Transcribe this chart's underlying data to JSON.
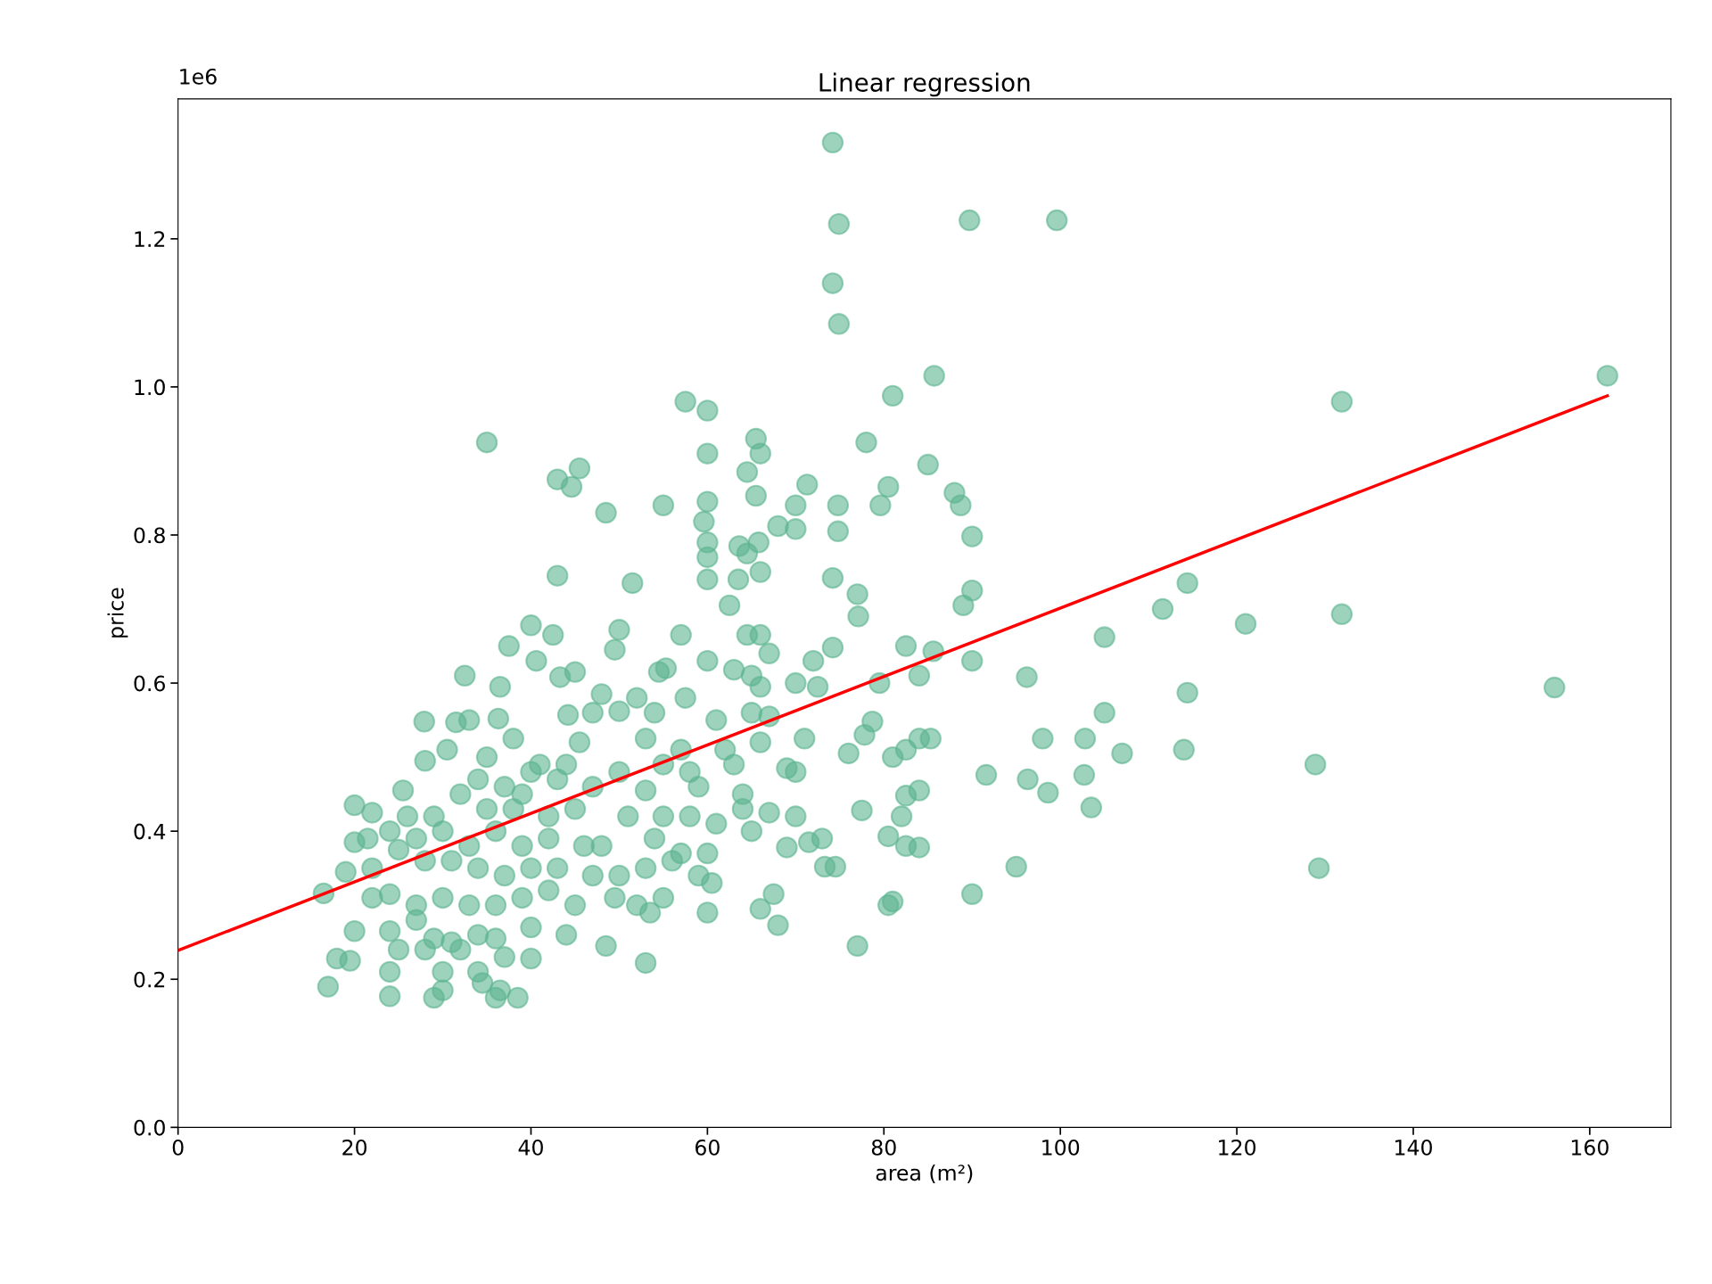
{
  "chart_data": {
    "type": "scatter",
    "title": "Linear regression",
    "xlabel": "area (m²)",
    "ylabel": "price",
    "annotations": [
      "1e6"
    ],
    "xlim": [
      0,
      169.2
    ],
    "ylim": [
      0,
      1.389
    ],
    "xticks": [
      0,
      20,
      40,
      60,
      80,
      100,
      120,
      140,
      160
    ],
    "yticks": [
      {
        "value": 0,
        "label": "0.0"
      },
      0.2,
      0.4,
      0.6,
      0.8,
      {
        "value": 1,
        "label": "1.0"
      },
      1.2
    ],
    "grid": false,
    "legend": false,
    "series": [
      {
        "color": "#5bb48f",
        "marker": "circle",
        "x": [
          74.2,
          74.9,
          89.7,
          99.6,
          74.2,
          74.9,
          162,
          85.7,
          131.9,
          57.5,
          60,
          81,
          35,
          78,
          65.5,
          60,
          66,
          85,
          45.5,
          43,
          64.5,
          44.6,
          71.3,
          80.5,
          88,
          65.5,
          60,
          55,
          70,
          74.8,
          79.6,
          88.7,
          48.5,
          59.6,
          68,
          70,
          74.8,
          90,
          60,
          65.8,
          63.6,
          64.5,
          60,
          43,
          51.5,
          60,
          63.5,
          66,
          74.2,
          114.4,
          89,
          90,
          77,
          111.6,
          131.9,
          77.1,
          62.5,
          121,
          40,
          50,
          57,
          64.5,
          66,
          105,
          42.5,
          37.5,
          49.5,
          85.6,
          67,
          82.5,
          60,
          72,
          90,
          40.6,
          32.5,
          43.3,
          45,
          54.5,
          55.3,
          63,
          65,
          74.2,
          79.5,
          84,
          96.2,
          114.4,
          156,
          36.5,
          48,
          52,
          57.5,
          66,
          70,
          72.5,
          82.5,
          27.9,
          31.5,
          33,
          36.3,
          44.2,
          47,
          50,
          54,
          61,
          65,
          67,
          78.7,
          77.8,
          84,
          85.3,
          98,
          102.8,
          105,
          38,
          41,
          45.5,
          53,
          57,
          62,
          66,
          71,
          76,
          81,
          107,
          114,
          128.9,
          91.6,
          96.3,
          102.7,
          98.6,
          28,
          30.5,
          35,
          40,
          44,
          50,
          55,
          58,
          63,
          69,
          70,
          34,
          37,
          39,
          43,
          47,
          53,
          59,
          64,
          25.5,
          32,
          84,
          82.5,
          103.5,
          77.5,
          20,
          22,
          26,
          29,
          35,
          38,
          42,
          45,
          51,
          55,
          58,
          61,
          64,
          67,
          70,
          73,
          82,
          21.5,
          24,
          27,
          30,
          33,
          36,
          39,
          42,
          46,
          48,
          54,
          57,
          60,
          65,
          69,
          71.5,
          73.3,
          74.5,
          80.5,
          82.5,
          84,
          95,
          129.3,
          20,
          19,
          22,
          25,
          28,
          31,
          34,
          37,
          40,
          43,
          47,
          50,
          53,
          56,
          59,
          60.5,
          16.5,
          22,
          24,
          27,
          30,
          33,
          36,
          39,
          42,
          45,
          49.5,
          52,
          55,
          60,
          66,
          67.5,
          81,
          80.5,
          90,
          20,
          24,
          27,
          29,
          31,
          34,
          36,
          40,
          44,
          48.5,
          53.5,
          68,
          77,
          18,
          19.5,
          25,
          28,
          30,
          32,
          34,
          37,
          40,
          53,
          17,
          24,
          24,
          29,
          30,
          34.5,
          36,
          36.5,
          38.5
        ],
        "values": [
          1.33,
          1.22,
          1.225,
          1.225,
          1.14,
          1.085,
          1.015,
          1.015,
          0.98,
          0.98,
          0.968,
          0.988,
          0.925,
          0.925,
          0.93,
          0.91,
          0.91,
          0.895,
          0.89,
          0.875,
          0.885,
          0.865,
          0.868,
          0.865,
          0.857,
          0.853,
          0.845,
          0.84,
          0.84,
          0.84,
          0.84,
          0.84,
          0.83,
          0.818,
          0.812,
          0.808,
          0.805,
          0.798,
          0.79,
          0.79,
          0.785,
          0.775,
          0.77,
          0.745,
          0.735,
          0.74,
          0.74,
          0.75,
          0.742,
          0.735,
          0.705,
          0.725,
          0.72,
          0.7,
          0.693,
          0.69,
          0.705,
          0.68,
          0.678,
          0.672,
          0.665,
          0.665,
          0.665,
          0.662,
          0.665,
          0.65,
          0.645,
          0.643,
          0.64,
          0.65,
          0.63,
          0.63,
          0.63,
          0.63,
          0.61,
          0.608,
          0.615,
          0.615,
          0.62,
          0.618,
          0.61,
          0.648,
          0.6,
          0.61,
          0.608,
          0.587,
          0.594,
          0.595,
          0.585,
          0.58,
          0.58,
          0.595,
          0.6,
          0.595,
          0.51,
          0.548,
          0.547,
          0.55,
          0.552,
          0.557,
          0.56,
          0.562,
          0.56,
          0.55,
          0.56,
          0.555,
          0.548,
          0.53,
          0.525,
          0.525,
          0.525,
          0.525,
          0.56,
          0.525,
          0.49,
          0.52,
          0.525,
          0.51,
          0.51,
          0.52,
          0.525,
          0.505,
          0.5,
          0.505,
          0.51,
          0.49,
          0.476,
          0.47,
          0.476,
          0.452,
          0.495,
          0.51,
          0.5,
          0.48,
          0.49,
          0.48,
          0.49,
          0.48,
          0.49,
          0.485,
          0.48,
          0.47,
          0.46,
          0.45,
          0.47,
          0.46,
          0.455,
          0.46,
          0.45,
          0.455,
          0.45,
          0.455,
          0.448,
          0.432,
          0.428,
          0.435,
          0.425,
          0.42,
          0.42,
          0.43,
          0.43,
          0.42,
          0.43,
          0.42,
          0.42,
          0.42,
          0.41,
          0.43,
          0.425,
          0.42,
          0.39,
          0.42,
          0.39,
          0.4,
          0.39,
          0.4,
          0.38,
          0.4,
          0.38,
          0.39,
          0.38,
          0.38,
          0.39,
          0.37,
          0.37,
          0.4,
          0.378,
          0.385,
          0.352,
          0.352,
          0.393,
          0.38,
          0.378,
          0.352,
          0.35,
          0.385,
          0.345,
          0.35,
          0.375,
          0.36,
          0.36,
          0.35,
          0.34,
          0.35,
          0.35,
          0.34,
          0.34,
          0.35,
          0.36,
          0.34,
          0.33,
          0.316,
          0.31,
          0.315,
          0.3,
          0.31,
          0.3,
          0.3,
          0.31,
          0.32,
          0.3,
          0.31,
          0.3,
          0.31,
          0.29,
          0.295,
          0.315,
          0.305,
          0.3,
          0.315,
          0.265,
          0.265,
          0.28,
          0.255,
          0.25,
          0.26,
          0.255,
          0.27,
          0.26,
          0.245,
          0.29,
          0.273,
          0.245,
          0.228,
          0.225,
          0.24,
          0.24,
          0.21,
          0.24,
          0.21,
          0.23,
          0.228,
          0.222,
          0.19,
          0.21,
          0.177,
          0.175,
          0.185,
          0.195,
          0.175,
          0.185,
          0.175
        ]
      },
      {
        "type": "line",
        "color": "#ff0000",
        "line_style": "solid",
        "x": [
          0,
          162
        ],
        "values": [
          0.239,
          0.988
        ]
      }
    ]
  }
}
